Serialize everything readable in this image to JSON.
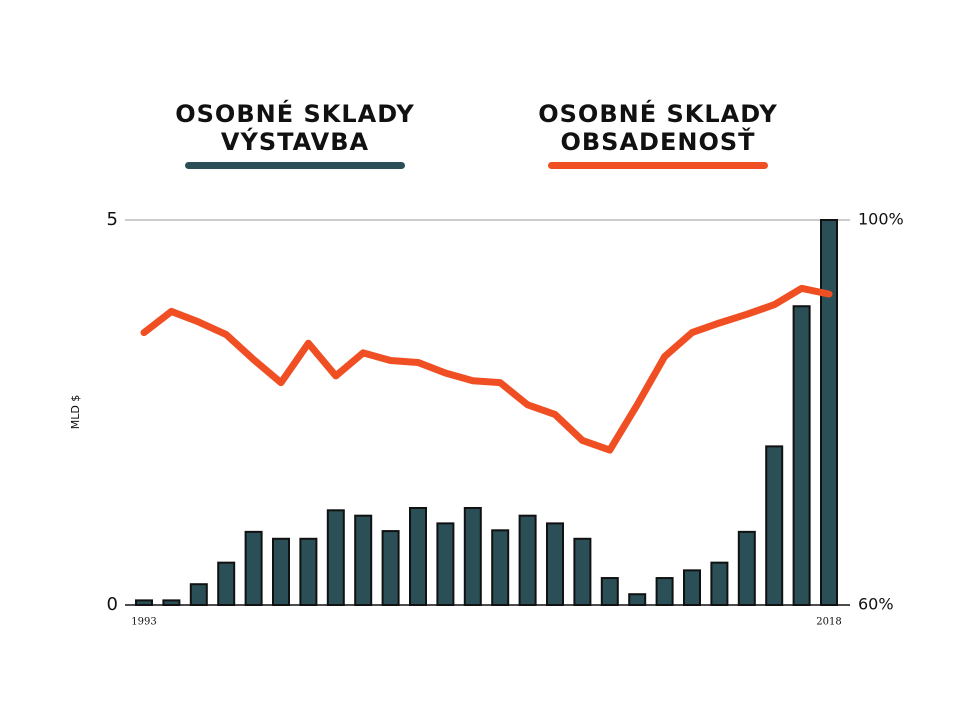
{
  "chart_data": {
    "type": "bar_line",
    "y_label": "MLD $",
    "categories": [
      "1993",
      null,
      null,
      null,
      null,
      null,
      null,
      null,
      null,
      null,
      null,
      null,
      null,
      null,
      null,
      null,
      null,
      null,
      null,
      null,
      null,
      null,
      null,
      null,
      null,
      "2018"
    ],
    "series": [
      {
        "name": "OSOBNÉ SKLADY VÝSTAVBA",
        "color": "#2b4f57",
        "type": "bar",
        "values": [
          0.06,
          0.06,
          0.27,
          0.55,
          0.95,
          0.86,
          0.86,
          1.23,
          1.16,
          0.96,
          1.26,
          1.06,
          1.26,
          0.97,
          1.16,
          1.06,
          0.86,
          0.35,
          0.14,
          0.35,
          0.45,
          0.55,
          0.95,
          2.06,
          3.88,
          5.0
        ]
      },
      {
        "name": "OSOBNÉ SKLADY OBSADENOSŤ",
        "color": "#f04e23",
        "type": "line",
        "axis": "y2",
        "values": [
          88.3,
          90.5,
          89.4,
          88.1,
          85.5,
          83.1,
          87.2,
          83.8,
          86.2,
          85.4,
          85.2,
          84.1,
          83.3,
          83.1,
          80.8,
          79.8,
          77.1,
          76.1,
          80.8,
          85.8,
          88.3,
          89.3,
          90.2,
          91.2,
          92.9,
          92.3
        ]
      }
    ],
    "ylim": [
      0,
      5
    ],
    "yticks": [
      0,
      5
    ],
    "y2lim": [
      60,
      100
    ],
    "y2ticks": [
      {
        "value": 60,
        "label": "60%"
      },
      {
        "value": 100,
        "label": "100%"
      }
    ],
    "grid": true
  }
}
